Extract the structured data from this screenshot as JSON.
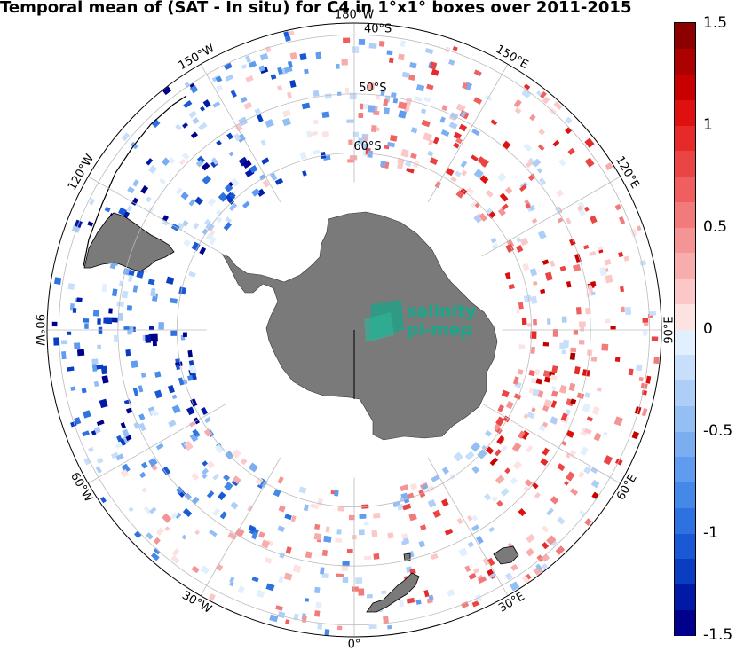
{
  "title": "Temporal mean of (SAT - In situ) for C4 in 1°x1° boxes over 2011-2015",
  "colorbar": {
    "min": -1.5,
    "max": 1.5,
    "labels": [
      "1.5",
      "1",
      "0.5",
      "0",
      "-0.5",
      "-1",
      "-1.5"
    ],
    "label_values": [
      1.5,
      1,
      0.5,
      0,
      -0.5,
      -1,
      -1.5
    ],
    "colors": [
      "#00008c",
      "#0019a6",
      "#0b3dc2",
      "#1a59d6",
      "#2d72e0",
      "#4488e8",
      "#5f9bee",
      "#7aaef1",
      "#94bff4",
      "#adcff7",
      "#c7dffa",
      "#e2effd",
      "#fde2e2",
      "#fbc7c7",
      "#f8adad",
      "#f59494",
      "#f27a7a",
      "#ef5f5f",
      "#eb4444",
      "#e62a2a",
      "#de1010",
      "#c90000",
      "#ad0000",
      "#8c0000"
    ]
  },
  "map": {
    "projection": "south-polar-stereographic",
    "longitude_labels": [
      {
        "text": "180°W",
        "lon": 180
      },
      {
        "text": "150°W",
        "lon": -150
      },
      {
        "text": "120°W",
        "lon": -120
      },
      {
        "text": "90°W",
        "lon": -90
      },
      {
        "text": "60°W",
        "lon": -60
      },
      {
        "text": "30°W",
        "lon": -30
      },
      {
        "text": "0°",
        "lon": 0
      },
      {
        "text": "30°E",
        "lon": 30
      },
      {
        "text": "60°E",
        "lon": 60
      },
      {
        "text": "90°E",
        "lon": 90
      },
      {
        "text": "120°E",
        "lon": 120
      },
      {
        "text": "150°E",
        "lon": 150
      }
    ],
    "latitude_labels": [
      {
        "text": "60°S",
        "lat": -60
      },
      {
        "text": "50°S",
        "lat": -50
      },
      {
        "text": "40°S",
        "lat": -40
      }
    ],
    "land_color": "#7a7a7a"
  },
  "logo": {
    "line1": "salinity",
    "line2": "pi-mep",
    "color": "#1aa68a"
  }
}
